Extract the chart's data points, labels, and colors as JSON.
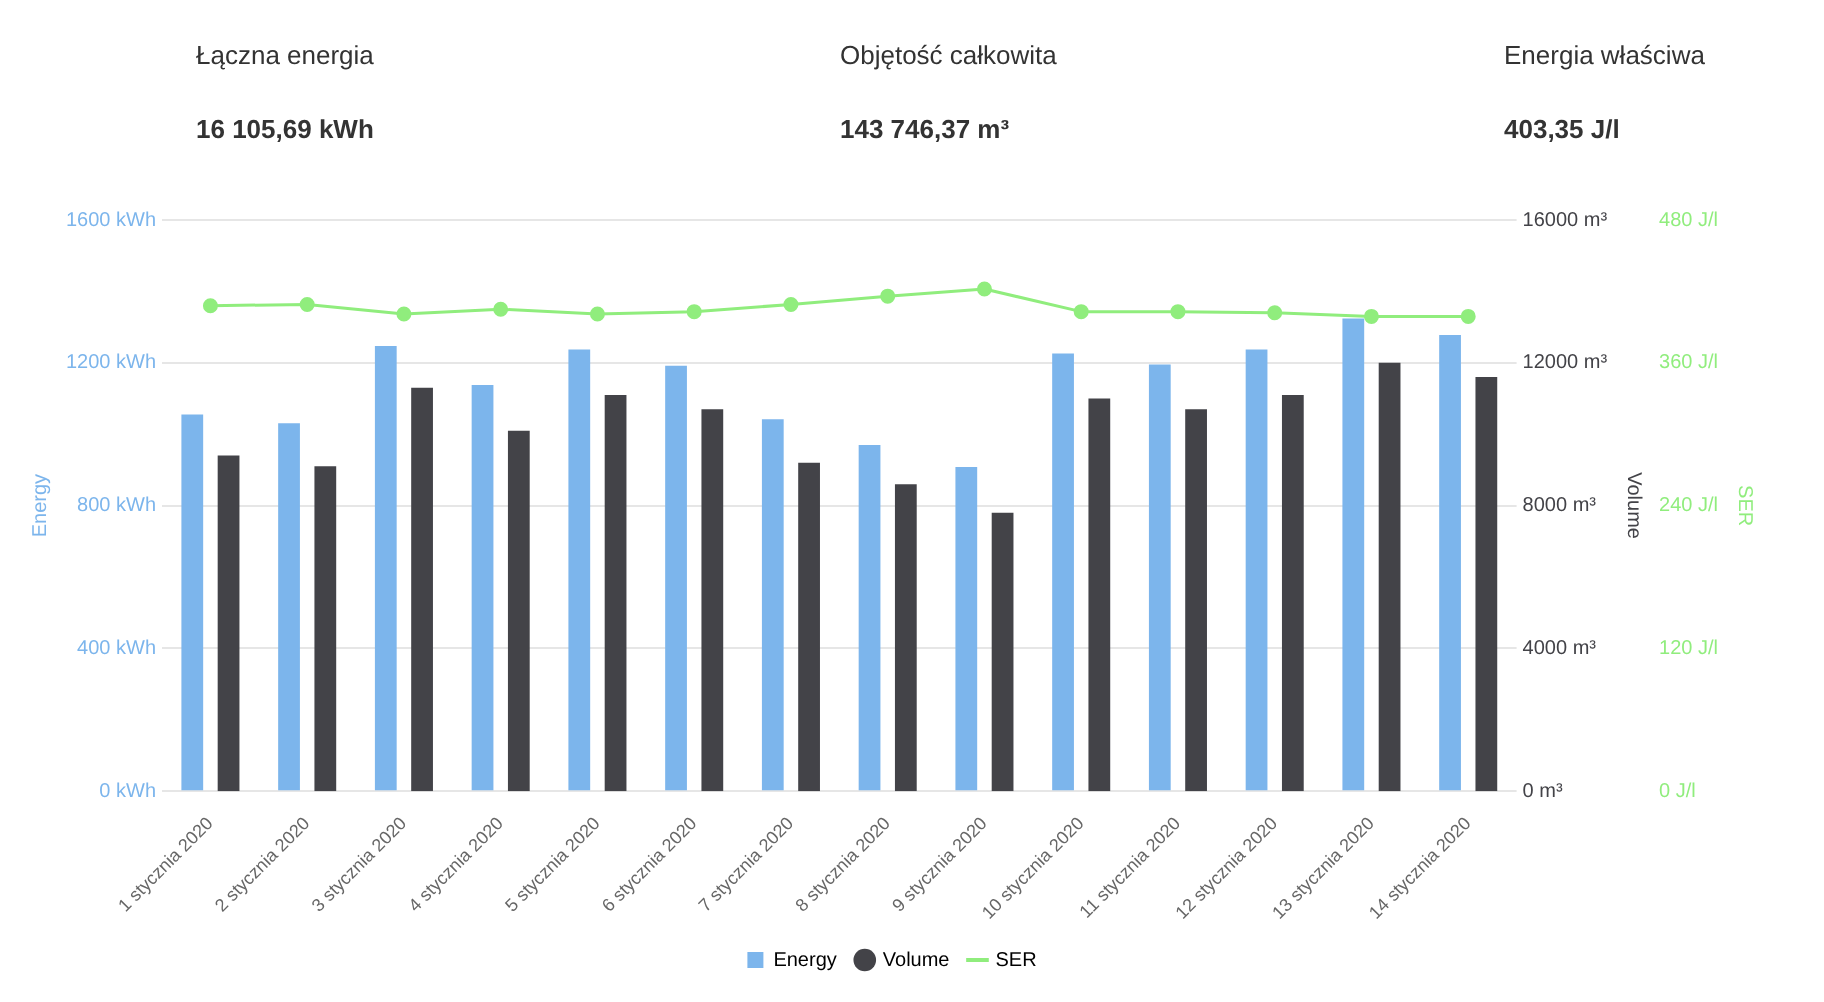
{
  "chart_data": {
    "type": "bar",
    "annotations": [
      "Łączna energia",
      "16 105,69 kWh",
      "Objętość całkowita",
      "143 746,37 m³",
      "Energia właściwa",
      "403,35 J/l"
    ],
    "categories": [
      "1 stycznia 2020",
      "2 stycznia 2020",
      "3 stycznia 2020",
      "4 stycznia 2020",
      "5 stycznia 2020",
      "6 stycznia 2020",
      "7 stycznia 2020",
      "8 stycznia 2020",
      "9 stycznia 2020",
      "10 stycznia 2020",
      "11 stycznia 2020",
      "12 stycznia 2020",
      "13 stycznia 2020",
      "14 stycznia 2020"
    ],
    "series": [
      {
        "name": "Energy",
        "color": "#7cb5ec",
        "values": [
          1055,
          1031,
          1247,
          1138,
          1237,
          1192,
          1042,
          970,
          908,
          1226,
          1195,
          1237,
          1324,
          1278
        ]
      },
      {
        "name": "Volume",
        "axis": "y2",
        "color": "#434348",
        "values": [
          9400,
          9100,
          11300,
          10100,
          11100,
          10700,
          9200,
          8600,
          7800,
          11000,
          10700,
          11100,
          12000,
          11600
        ]
      },
      {
        "name": "SER",
        "type": "line",
        "axis": "y3",
        "color": "#90ed7d",
        "values": [
          408,
          409,
          401,
          405,
          401,
          403,
          409,
          416,
          422,
          403,
          403,
          402,
          399,
          399
        ]
      }
    ],
    "ylabel": "Energy",
    "y2label": "Volume",
    "y3label": "SER",
    "ylim": [
      0,
      1600
    ],
    "yticks": [
      {
        "value": 0,
        "label": "0 kWh"
      },
      {
        "value": 400,
        "label": "400 kWh"
      },
      {
        "value": 800,
        "label": "800 kWh"
      },
      {
        "value": 1200,
        "label": "1200 kWh"
      },
      {
        "value": 1600,
        "label": "1600 kWh"
      }
    ],
    "y2lim": [
      0,
      16000
    ],
    "y2ticks": [
      {
        "value": 0,
        "label": "0 m³"
      },
      {
        "value": 4000,
        "label": "4000 m³"
      },
      {
        "value": 8000,
        "label": "8000 m³"
      },
      {
        "value": 12000,
        "label": "12000 m³"
      },
      {
        "value": 16000,
        "label": "16000 m³"
      }
    ],
    "y3lim": [
      0,
      480
    ],
    "y3ticks": [
      {
        "value": 0,
        "label": "0 J/l"
      },
      {
        "value": 120,
        "label": "120 J/l"
      },
      {
        "value": 240,
        "label": "240 J/l"
      },
      {
        "value": 360,
        "label": "360 J/l"
      },
      {
        "value": 480,
        "label": "480 J/l"
      }
    ],
    "grid": "y",
    "legend": "bottom",
    "marker": "circle",
    "line_style": "solid"
  }
}
